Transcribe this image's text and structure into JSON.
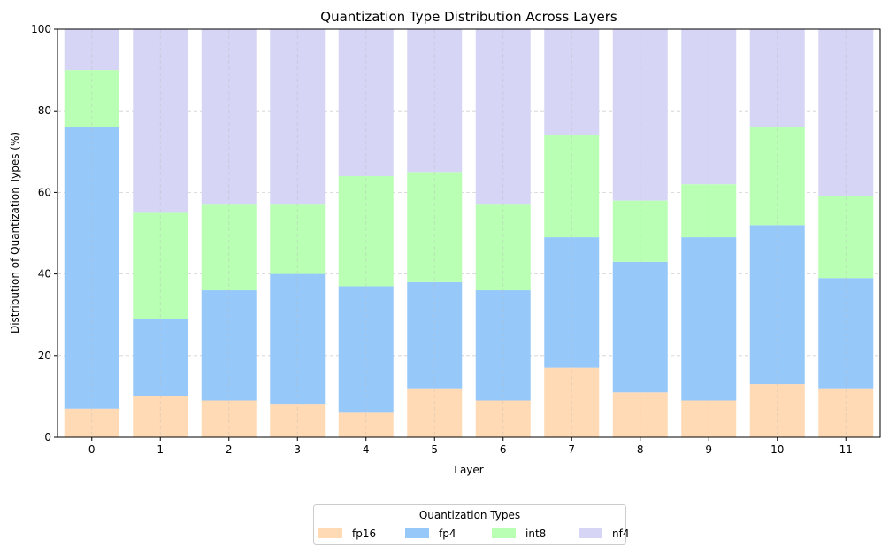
{
  "chart_data": {
    "type": "bar",
    "stacked": true,
    "title": "Quantization Type Distribution Across Layers",
    "xlabel": "Layer",
    "ylabel": "Distribution of Quantization Types (%)",
    "ylim": [
      0,
      100
    ],
    "yticks": [
      0,
      20,
      40,
      60,
      80,
      100
    ],
    "grid": true,
    "categories": [
      "0",
      "1",
      "2",
      "3",
      "4",
      "5",
      "6",
      "7",
      "8",
      "9",
      "10",
      "11"
    ],
    "series": [
      {
        "name": "fp16",
        "color": "#ffdab4",
        "values": [
          7,
          10,
          9,
          8,
          6,
          12,
          9,
          17,
          11,
          9,
          13,
          12
        ]
      },
      {
        "name": "fp4",
        "color": "#96c8fa",
        "values": [
          69,
          19,
          27,
          32,
          31,
          26,
          27,
          32,
          32,
          40,
          39,
          27
        ]
      },
      {
        "name": "int8",
        "color": "#b9ffb4",
        "values": [
          14,
          26,
          21,
          17,
          27,
          27,
          21,
          25,
          15,
          13,
          24,
          20
        ]
      },
      {
        "name": "nf4",
        "color": "#d6d5f5",
        "values": [
          10,
          45,
          43,
          43,
          36,
          35,
          43,
          26,
          42,
          38,
          24,
          41
        ]
      }
    ],
    "legend": {
      "title": "Quantization Types",
      "placement": "bottom-center"
    }
  }
}
